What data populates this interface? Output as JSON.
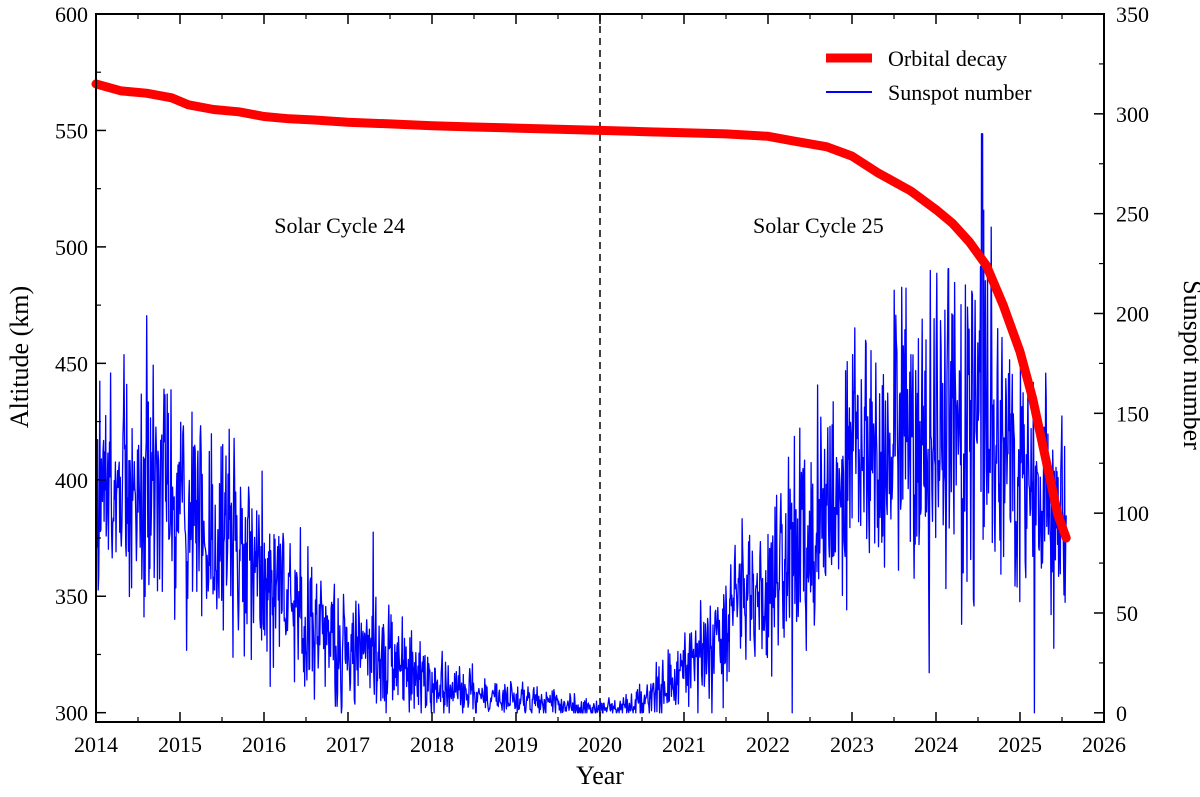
{
  "chart_data": {
    "type": "line",
    "title": "",
    "xlabel": "Year",
    "ylabel_left": "Altitude (km)",
    "ylabel_right": "Sunspot number",
    "xlim": [
      2014,
      2026
    ],
    "ylim_left": [
      296,
      600
    ],
    "ylim_right": [
      -4.6,
      350
    ],
    "x_ticks": [
      "2014",
      "2015",
      "2016",
      "2017",
      "2018",
      "2019",
      "2020",
      "2021",
      "2022",
      "2023",
      "2024",
      "2025",
      "2026"
    ],
    "y_ticks_left": [
      "300",
      "350",
      "400",
      "450",
      "500",
      "550",
      "600"
    ],
    "y_ticks_right": [
      "0",
      "50",
      "100",
      "150",
      "200",
      "250",
      "300",
      "350"
    ],
    "vertical_line": {
      "x": 2020,
      "style": "dashed"
    },
    "annotations": [
      {
        "text": "Solar Cycle 24",
        "x": 2016.9,
        "y": 506
      },
      {
        "text": "Solar Cycle 25",
        "x": 2022.6,
        "y": 506
      }
    ],
    "legend_position": "top-right",
    "colors": {
      "orbital": "#ff0000",
      "sunspot": "#0000ff"
    },
    "series": [
      {
        "name": "Orbital decay",
        "axis": "left",
        "x": [
          2014.0,
          2014.3,
          2014.6,
          2014.9,
          2015.1,
          2015.4,
          2015.7,
          2016.0,
          2016.3,
          2016.6,
          2017.0,
          2017.5,
          2018.0,
          2018.5,
          2019.0,
          2019.5,
          2020.0,
          2020.5,
          2021.0,
          2021.5,
          2022.0,
          2022.3,
          2022.7,
          2023.0,
          2023.3,
          2023.7,
          2024.0,
          2024.2,
          2024.4,
          2024.6,
          2024.8,
          2025.0,
          2025.15,
          2025.3,
          2025.45,
          2025.55
        ],
        "values": [
          570,
          567,
          566,
          564,
          561,
          559,
          558,
          556,
          555,
          554.5,
          553.5,
          552.8,
          552,
          551.5,
          551,
          550.5,
          550,
          549.5,
          549,
          548.5,
          547.5,
          545.5,
          543,
          539,
          532,
          524,
          516,
          510,
          502,
          492,
          475,
          455,
          435,
          410,
          385,
          375
        ]
      },
      {
        "name": "Sunspot number",
        "axis": "right",
        "generated": true,
        "seed": 24,
        "x_range": [
          2014.0,
          2025.55
        ],
        "samples": 1800,
        "envelope_x": [
          2014.0,
          2014.5,
          2015.0,
          2015.5,
          2016.0,
          2016.5,
          2017.0,
          2017.5,
          2018.0,
          2018.5,
          2019.0,
          2019.5,
          2020.0,
          2020.3,
          2020.6,
          2021.0,
          2021.5,
          2022.0,
          2022.5,
          2023.0,
          2023.5,
          2024.0,
          2024.5,
          2025.0,
          2025.55
        ],
        "envelope_mean": [
          110,
          110,
          105,
          90,
          70,
          48,
          35,
          28,
          12,
          8,
          6,
          4,
          2,
          3,
          6,
          20,
          45,
          70,
          90,
          120,
          135,
          140,
          155,
          120,
          90
        ],
        "envelope_amp": [
          60,
          65,
          70,
          62,
          55,
          42,
          38,
          35,
          20,
          14,
          10,
          8,
          5,
          8,
          14,
          25,
          42,
          55,
          62,
          70,
          80,
          90,
          105,
          80,
          55
        ],
        "peak_value": 290
      }
    ]
  }
}
